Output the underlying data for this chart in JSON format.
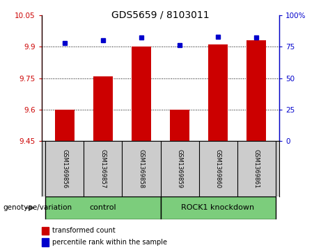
{
  "title": "GDS5659 / 8103011",
  "samples": [
    "GSM1369856",
    "GSM1369857",
    "GSM1369858",
    "GSM1369859",
    "GSM1369860",
    "GSM1369861"
  ],
  "red_values": [
    9.6,
    9.76,
    9.9,
    9.6,
    9.91,
    9.93
  ],
  "blue_values": [
    78,
    80,
    82,
    76,
    83,
    82
  ],
  "ylim_left": [
    9.45,
    10.05
  ],
  "ylim_right": [
    0,
    100
  ],
  "yticks_left": [
    9.45,
    9.6,
    9.75,
    9.9,
    10.05
  ],
  "yticks_right": [
    0,
    25,
    50,
    75,
    100
  ],
  "ytick_labels_right": [
    "0",
    "25",
    "50",
    "75",
    "100%"
  ],
  "red_color": "#CC0000",
  "blue_color": "#0000CC",
  "bar_base": 9.45,
  "bar_width": 0.5,
  "legend_red": "transformed count",
  "legend_blue": "percentile rank within the sample",
  "sample_box_color": "#CCCCCC",
  "control_color": "#7CCD7C",
  "knockdown_color": "#7CCD7C",
  "title_fontsize": 10,
  "tick_fontsize": 7.5,
  "label_fontsize": 8,
  "gridline_color": "black",
  "gridline_ticks": [
    9.6,
    9.75,
    9.9
  ]
}
